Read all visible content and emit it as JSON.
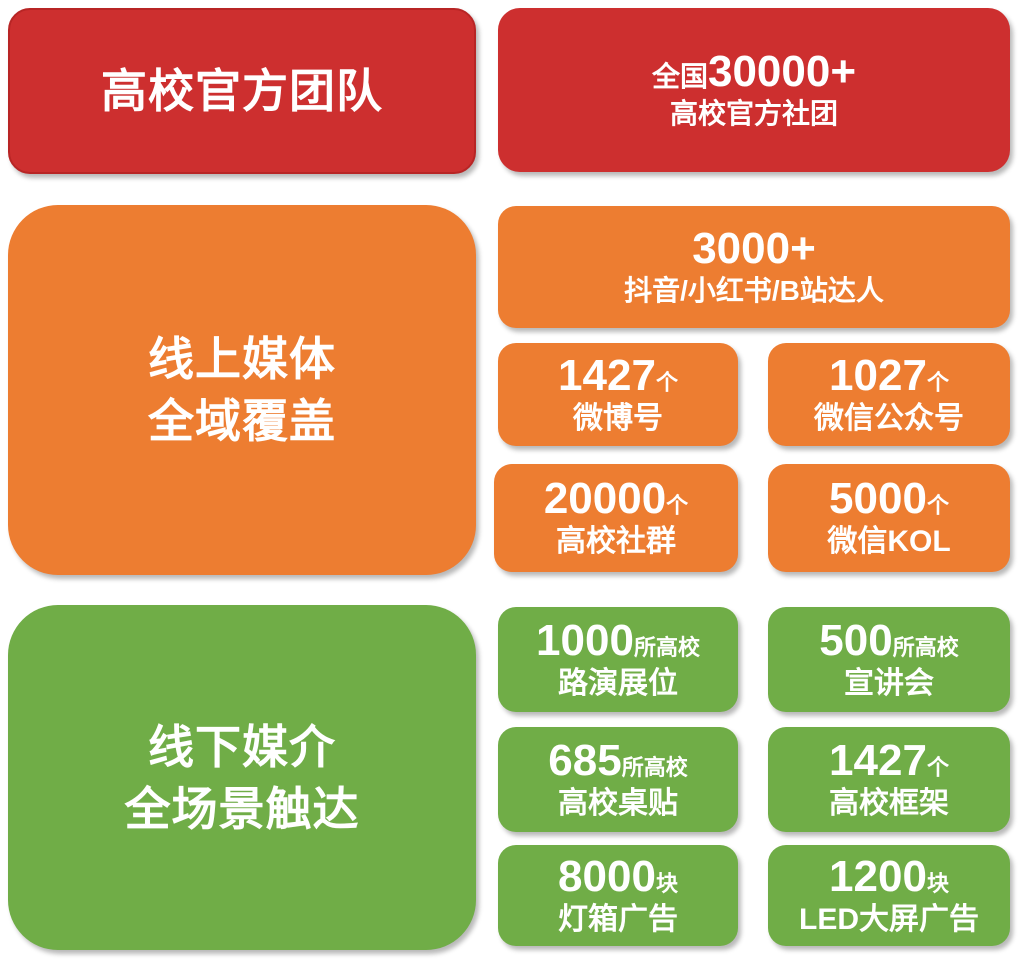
{
  "colors": {
    "red": "#cd2f2f",
    "orange": "#ed7d31",
    "green": "#70ad47"
  },
  "team": {
    "title": "高校官方团队",
    "prefix": "全国",
    "number": "30000+",
    "label": "高校官方社团"
  },
  "online": {
    "title_line1": "线上媒体",
    "title_line2": "全域覆盖",
    "items": [
      {
        "number": "3000+",
        "unit": "",
        "label": "抖音/小红书/B站达人"
      },
      {
        "number": "1427",
        "unit": "个",
        "label": "微博号"
      },
      {
        "number": "1027",
        "unit": "个",
        "label": "微信公众号"
      },
      {
        "number": "20000",
        "unit": "个",
        "label": "高校社群"
      },
      {
        "number": "5000",
        "unit": "个",
        "label": "微信KOL"
      }
    ]
  },
  "offline": {
    "title_line1": "线下媒介",
    "title_line2": "全场景触达",
    "items": [
      {
        "number": "1000",
        "unit": "所高校",
        "label": "路演展位"
      },
      {
        "number": "500",
        "unit": "所高校",
        "label": "宣讲会"
      },
      {
        "number": "685",
        "unit": "所高校",
        "label": "高校桌贴"
      },
      {
        "number": "1427",
        "unit": "个",
        "label": "高校框架"
      },
      {
        "number": "8000",
        "unit": "块",
        "label": "灯箱广告"
      },
      {
        "number": "1200",
        "unit": "块",
        "label": "LED大屏广告"
      }
    ]
  }
}
